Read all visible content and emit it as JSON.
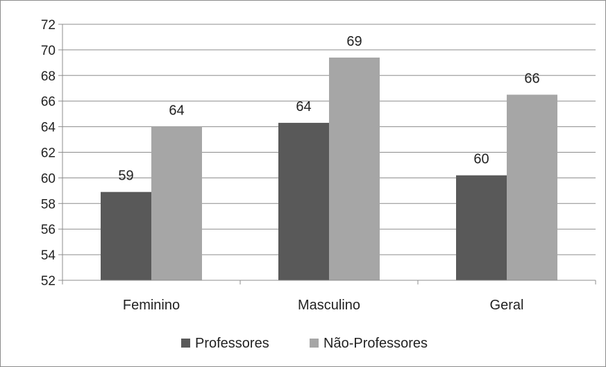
{
  "chart_data": {
    "type": "bar",
    "categories": [
      "Feminino",
      "Masculino",
      "Geral"
    ],
    "series": [
      {
        "name": "Professores",
        "values": [
          58.9,
          64.3,
          60.2
        ],
        "labels": [
          "59",
          "64",
          "60"
        ],
        "color": "#595959"
      },
      {
        "name": "Não-Professores",
        "values": [
          64.0,
          69.4,
          66.5
        ],
        "labels": [
          "64",
          "69",
          "66"
        ],
        "color": "#a6a6a6"
      }
    ],
    "ylim": [
      52,
      72
    ],
    "yticks": [
      52,
      54,
      56,
      58,
      60,
      62,
      64,
      66,
      68,
      70,
      72
    ],
    "grid": true,
    "legend": "bottom"
  }
}
